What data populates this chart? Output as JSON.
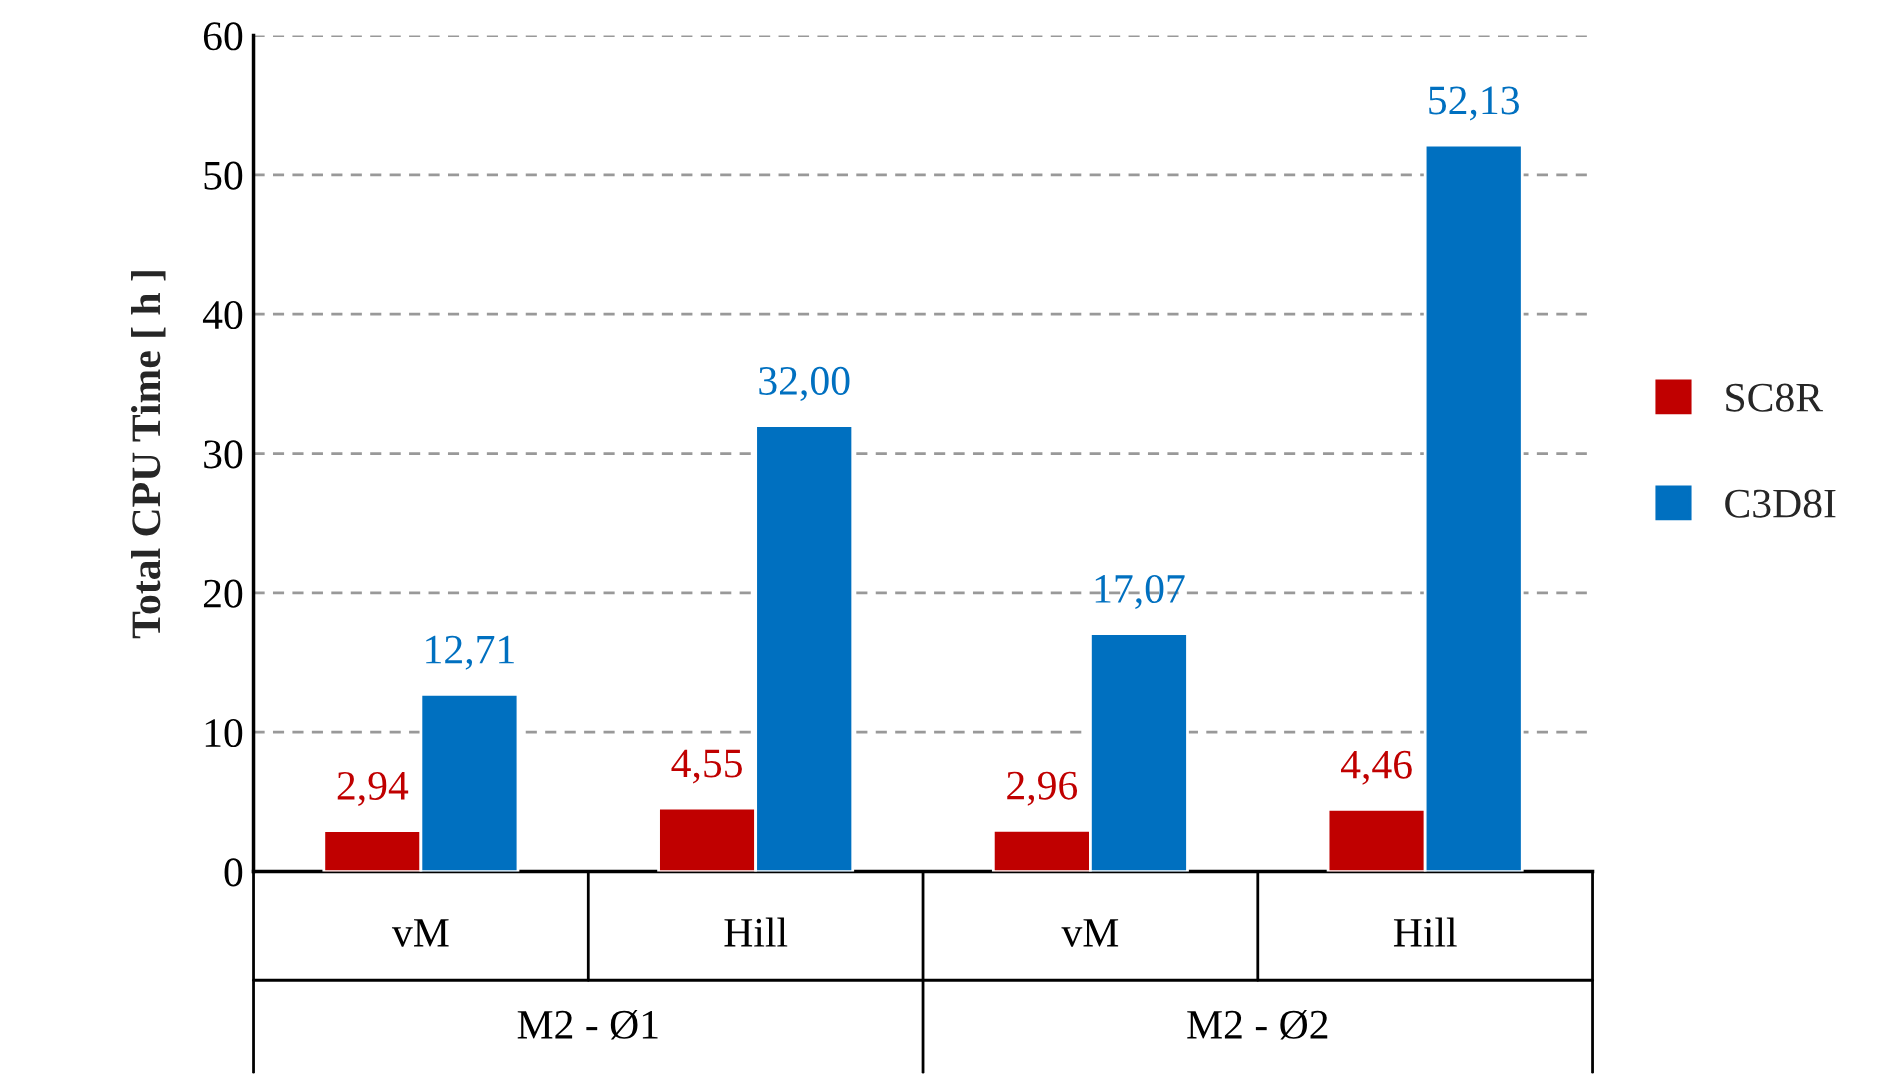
{
  "chart_data": {
    "type": "bar",
    "ylabel": "Total CPU Time [ h ]",
    "categories": [
      "vM",
      "Hill",
      "vM",
      "Hill"
    ],
    "series": [
      {
        "name": "SC8R",
        "color": "#c00000",
        "values": [
          2.94,
          4.55,
          2.96,
          4.46
        ],
        "value_labels": [
          "2,94",
          "4,55",
          "2,96",
          "4,46"
        ]
      },
      {
        "name": "C3D8I",
        "color": "#0070c0",
        "values": [
          12.71,
          32.0,
          17.07,
          52.13
        ],
        "value_labels": [
          "12,71",
          "32,00",
          "17,07",
          "52,13"
        ]
      }
    ],
    "annotations": [
      "M2 - Ø1",
      "M2 - Ø2"
    ],
    "ylim": [
      0,
      60
    ],
    "yticks": [
      0,
      10,
      20,
      30,
      40,
      50,
      60
    ],
    "grid": "y",
    "legend": "right"
  }
}
